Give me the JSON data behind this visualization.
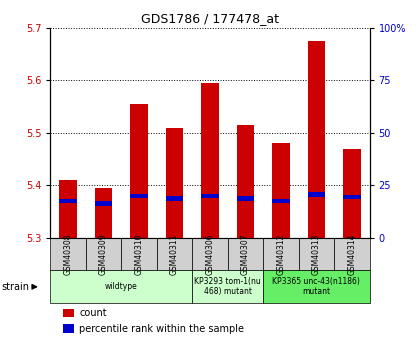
{
  "title": "GDS1786 / 177478_at",
  "samples": [
    "GSM40308",
    "GSM40309",
    "GSM40310",
    "GSM40311",
    "GSM40306",
    "GSM40307",
    "GSM40312",
    "GSM40313",
    "GSM40314"
  ],
  "count_values": [
    5.41,
    5.395,
    5.555,
    5.51,
    5.595,
    5.515,
    5.48,
    5.675,
    5.47
  ],
  "percentile_values": [
    5.37,
    5.365,
    5.38,
    5.375,
    5.38,
    5.375,
    5.37,
    5.382,
    5.378
  ],
  "ylim_left": [
    5.3,
    5.7
  ],
  "ylim_right": [
    0,
    100
  ],
  "yticks_left": [
    5.3,
    5.4,
    5.5,
    5.6,
    5.7
  ],
  "yticks_right": [
    0,
    25,
    50,
    75,
    100
  ],
  "ybase": 5.3,
  "groups": [
    {
      "label": "wildtype",
      "indices": [
        0,
        1,
        2,
        3
      ],
      "color": "#ccffcc"
    },
    {
      "label": "KP3293 tom-1(nu\n468) mutant",
      "indices": [
        4,
        5
      ],
      "color": "#ccffcc"
    },
    {
      "label": "KP3365 unc-43(n1186)\nmutant",
      "indices": [
        6,
        7,
        8
      ],
      "color": "#66ee66"
    }
  ],
  "bar_color": "#cc0000",
  "percentile_color": "#0000cc",
  "bar_width": 0.5,
  "left_tick_color": "#cc0000",
  "right_tick_color": "#0000cc",
  "grid_color": "#000000",
  "grid_style": "dotted",
  "sample_box_color": "#d0d0d0",
  "legend_items": [
    {
      "label": "count",
      "color": "#cc0000"
    },
    {
      "label": "percentile rank within the sample",
      "color": "#0000cc"
    }
  ]
}
